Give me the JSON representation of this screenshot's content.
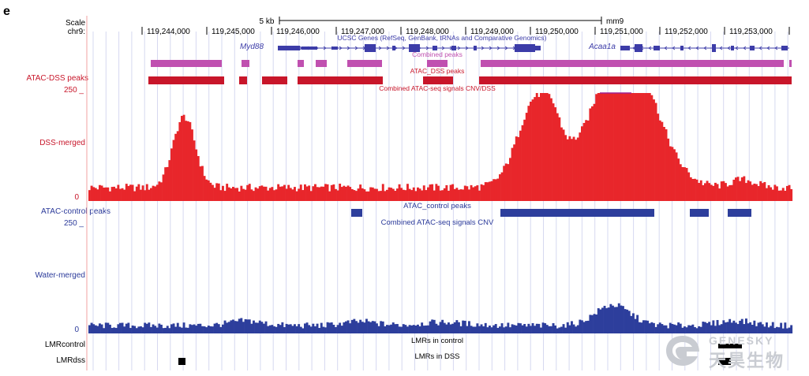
{
  "panel_letter": "e",
  "header": {
    "scale_label": "Scale",
    "chrom_label": "chr9:",
    "scale_text": "5 kb",
    "assembly": "mm9",
    "positions": [
      "119,244,000",
      "119,245,000",
      "119,246,000",
      "119,247,000",
      "119,248,000",
      "119,249,000",
      "119,250,000",
      "119,251,000",
      "119,252,000",
      "119,253,000"
    ]
  },
  "tracks": {
    "genes_title": "UCSC Genes (RefSeq, GenBank, tRNAs and Comparative Genomics)",
    "gene1": "Myd88",
    "gene2": "Acaa1a",
    "combined_peaks_title": "Combined peaks",
    "atac_dss_peaks_title": "ATAC_DSS peaks",
    "atac_dss_peaks_label": "ATAC-DSS peaks",
    "combined_signal_dss_title": "Combined ATAC-seq signals CNV/DSS",
    "dss_scale_max": "250 _",
    "dss_label": "DSS-merged",
    "dss_zero": "0",
    "atac_control_peaks_label": "ATAC-control peaks",
    "atac_control_peaks_title": "ATAC_control peaks",
    "combined_signal_cnv_title": "Combined ATAC-seq signals CNV",
    "water_scale_max": "250 _",
    "water_label": "Water-merged",
    "water_zero": "0",
    "lmr_control_label": "LMRcontrol",
    "lmr_control_title": "LMRs in control",
    "lmr_dss_label": "LMRdss",
    "lmr_dss_title": "LMRs in DSS"
  },
  "watermark": {
    "line1": "GENESKY",
    "line2": "天昊生物"
  },
  "colors": {
    "dss_red": "#e8262b",
    "peak_red": "#c8162a",
    "combined_magenta": "#c050b0",
    "control_blue": "#2d3e9c",
    "gene_blue": "#3c3ca8",
    "grid": "#d6d8f0",
    "label_blue": "#2b3a9a"
  }
}
